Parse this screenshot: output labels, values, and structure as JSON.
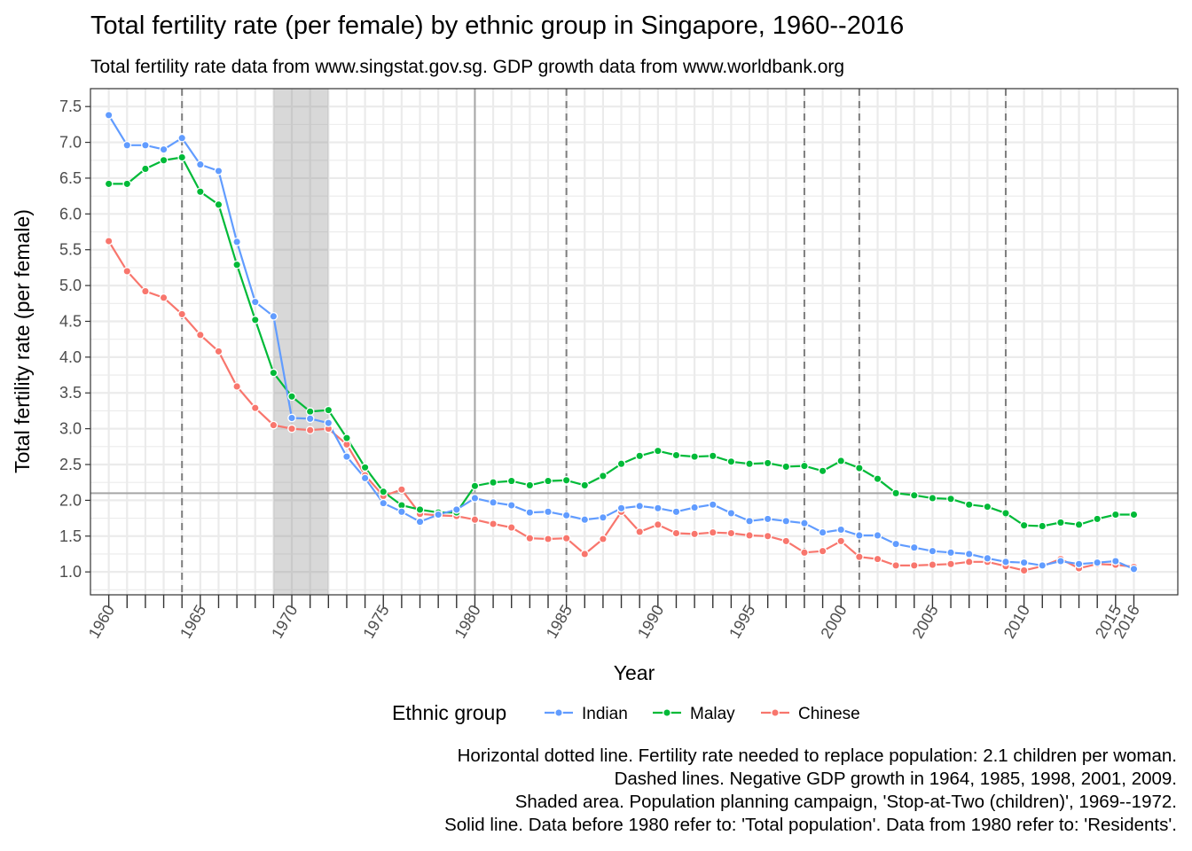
{
  "chart_data": {
    "type": "line",
    "title": "Total fertility rate (per female) by ethnic group in Singapore, 1960--2016",
    "subtitle": "Total fertility rate data from www.singstat.gov.sg. GDP growth data from www.worldbank.org",
    "xlabel": "Year",
    "ylabel": "Total fertility rate (per female)",
    "xlim": [
      1959.3,
      11016.7
    ],
    "ylim": [
      0.68,
      7.75
    ],
    "x_ticks": [
      1960,
      1965,
      1970,
      1975,
      1980,
      1985,
      1990,
      1995,
      2000,
      2005,
      2010,
      2015,
      2016
    ],
    "x_tick_labels": [
      "1960",
      "1965",
      "1970",
      "1975",
      "1980",
      "1985",
      "1990",
      "1995",
      "2000",
      "2005",
      "2010",
      "2015",
      "2016"
    ],
    "y_ticks": [
      1.0,
      1.5,
      2.0,
      2.5,
      3.0,
      3.5,
      4.0,
      4.5,
      5.0,
      5.5,
      6.0,
      6.5,
      7.0,
      7.5
    ],
    "y_tick_labels": [
      "1.0",
      "1.5",
      "2.0",
      "2.5",
      "3.0",
      "3.5",
      "4.0",
      "4.5",
      "5.0",
      "5.5",
      "6.0",
      "6.5",
      "7.0",
      "7.5"
    ],
    "grid": true,
    "legend": {
      "title": "Ethnic group",
      "position": "bottom"
    },
    "x": [
      1960,
      1961,
      1962,
      1963,
      1964,
      1965,
      1966,
      1967,
      1968,
      1969,
      1970,
      1971,
      1972,
      1973,
      1974,
      1975,
      1976,
      1977,
      1978,
      1979,
      1980,
      1981,
      1982,
      1983,
      1984,
      1985,
      1986,
      1987,
      1988,
      1989,
      1990,
      1991,
      1992,
      1993,
      1994,
      1995,
      1996,
      1997,
      1998,
      1999,
      2000,
      2001,
      2002,
      2003,
      2004,
      2005,
      2006,
      2007,
      2008,
      2009,
      2010,
      2011,
      2012,
      2013,
      2014,
      2015,
      2016
    ],
    "series": [
      {
        "name": "Indian",
        "color": "#619CFF",
        "values": [
          7.38,
          6.96,
          6.96,
          6.9,
          7.06,
          6.69,
          6.6,
          5.61,
          4.77,
          4.57,
          3.15,
          3.14,
          3.08,
          2.61,
          2.31,
          1.96,
          1.84,
          1.7,
          1.8,
          1.87,
          2.03,
          1.97,
          1.93,
          1.83,
          1.84,
          1.79,
          1.73,
          1.76,
          1.89,
          1.92,
          1.89,
          1.84,
          1.9,
          1.94,
          1.82,
          1.71,
          1.74,
          1.71,
          1.68,
          1.55,
          1.59,
          1.51,
          1.51,
          1.39,
          1.34,
          1.29,
          1.27,
          1.25,
          1.19,
          1.14,
          1.13,
          1.09,
          1.15,
          1.11,
          1.13,
          1.15,
          1.04
        ]
      },
      {
        "name": "Malay",
        "color": "#00BA38",
        "values": [
          6.42,
          6.42,
          6.63,
          6.75,
          6.79,
          6.31,
          6.13,
          5.29,
          4.52,
          3.78,
          3.45,
          3.24,
          3.26,
          2.87,
          2.46,
          2.12,
          1.93,
          1.87,
          1.83,
          1.83,
          2.2,
          2.25,
          2.27,
          2.21,
          2.27,
          2.28,
          2.21,
          2.34,
          2.51,
          2.62,
          2.69,
          2.63,
          2.61,
          2.62,
          2.54,
          2.51,
          2.52,
          2.47,
          2.48,
          2.41,
          2.55,
          2.45,
          2.3,
          2.1,
          2.07,
          2.03,
          2.02,
          1.94,
          1.91,
          1.82,
          1.65,
          1.64,
          1.69,
          1.66,
          1.74,
          1.8,
          1.8
        ]
      },
      {
        "name": "Chinese",
        "color": "#F8766D",
        "values": [
          5.62,
          5.2,
          4.92,
          4.83,
          4.6,
          4.31,
          4.08,
          3.59,
          3.29,
          3.05,
          3.0,
          2.98,
          3.0,
          2.78,
          2.35,
          2.06,
          2.15,
          1.81,
          1.79,
          1.78,
          1.73,
          1.67,
          1.62,
          1.47,
          1.46,
          1.47,
          1.25,
          1.46,
          1.84,
          1.56,
          1.66,
          1.54,
          1.53,
          1.55,
          1.54,
          1.51,
          1.5,
          1.43,
          1.27,
          1.29,
          1.43,
          1.21,
          1.18,
          1.09,
          1.09,
          1.1,
          1.11,
          1.14,
          1.14,
          1.08,
          1.02,
          1.08,
          1.18,
          1.05,
          1.11,
          1.1,
          1.07
        ]
      }
    ],
    "annotations": {
      "replacement_rate": 2.1,
      "negative_gdp_years": [
        1964,
        1985,
        1998,
        2001,
        2009
      ],
      "campaign_period": [
        1969,
        1972
      ],
      "data_definition_change": 1980
    },
    "caption": [
      "Horizontal dotted line. Fertility rate needed to replace population: 2.1 children per woman.",
      "Dashed lines. Negative GDP growth in 1964, 1985, 1998, 2001, 2009.",
      "Shaded area. Population planning campaign, 'Stop-at-Two (children)', 1969--1972.",
      "Solid line. Data before 1980 refer to: 'Total population'. Data from 1980 refer to: 'Residents'."
    ]
  }
}
